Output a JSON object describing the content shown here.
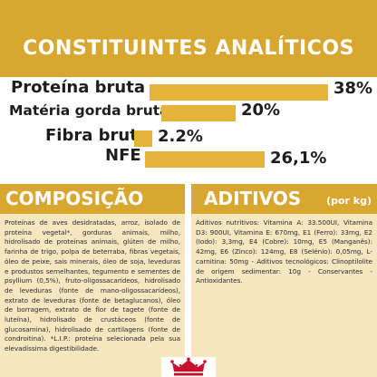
{
  "analitico": {
    "title": "CONSTITUINTES ANALÍTICOS",
    "rows": [
      {
        "label": "Proteína bruta",
        "value": "38%"
      },
      {
        "label": "Matéria gorda bruta",
        "value": "20%"
      },
      {
        "label": "Fibra bruta",
        "value": "2.2%"
      },
      {
        "label": "NFE",
        "value": "26,1%"
      }
    ]
  },
  "composicao": {
    "title": "COMPOSIÇÃO",
    "text": "Proteínas de aves desidratadas, arroz, isolado de proteína vegetal*, gorduras animais, milho, hidrolisado de proteínas animais, glúten de milho, farinha de trigo, polpa de beterraba, fibras vegetais, óleo de peixe, sais minerais, óleo de soja, leveduras e produstos semelhantes, tegumento e sementes de psyllium (0,5%), fruto-oligossacarídeos, hidrolisado de leveduras (fonte de mano-oligossacarídeos), extrato de leveduras (fonte de betaglucanos), óleo de borragem, extrato de flor de tagete (fonte de luteína), hidrolisado de crustáceos (fonte de glucosamina), hidrolisado de cartilagens (fonte de condroitina). *L.I.P.: proteína selecionada pela sua elevadíssima digestibilidade."
  },
  "aditivos": {
    "title": "ADITIVOS",
    "subtitle": "(por kg)",
    "text": "Aditivos nutritivos: Vitamina A: 33.500UI, Vitamina D3: 900UI, Vitamina E: 670mg, E1 (Ferro): 33mg, E2 (Iodo): 3,3mg, E4 (Cobre): 10mg, E5 (Manganês): 42mg, E6 (Zinco): 124mg, E8 (Selénio): 0,05mg, L-carnitina: 50mg - Aditivos tecnológicos: Clinoptilolite de origem sedimentar: 10g - Conservantes - Antioxidantes."
  },
  "brand": {
    "logo": "crown-logo"
  }
}
